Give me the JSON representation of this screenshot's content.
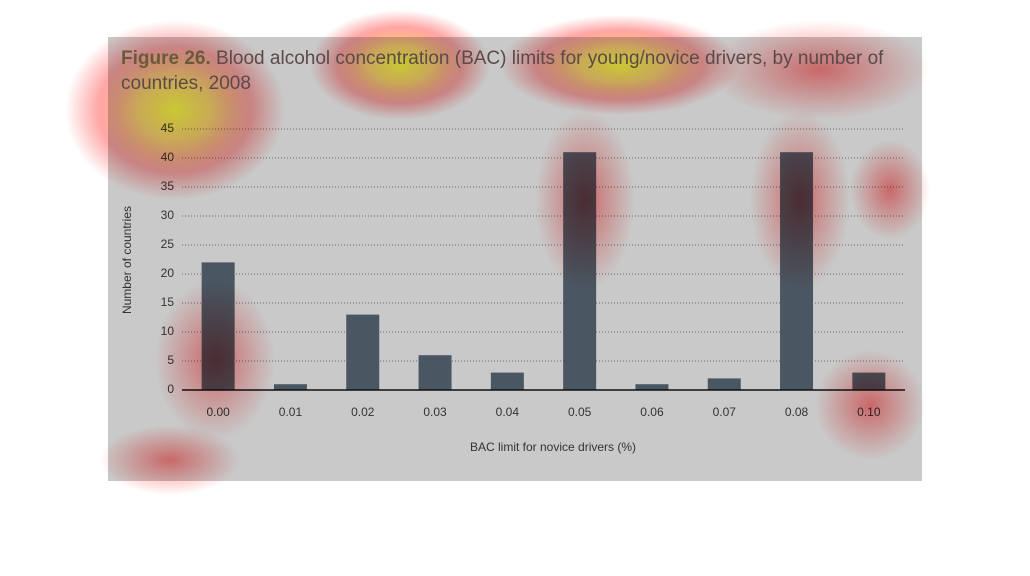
{
  "chart_data": {
    "type": "bar",
    "figure_label": "Figure 26.",
    "title": "Blood alcohol concentration (BAC) limits for young/novice drivers, by number of countries, 2008",
    "x_label": "BAC limit for novice drivers (%)",
    "y_label": "Number of countries",
    "categories": [
      "0.00",
      "0.01",
      "0.02",
      "0.03",
      "0.04",
      "0.05",
      "0.06",
      "0.07",
      "0.08",
      "0.10"
    ],
    "values": [
      22,
      1,
      13,
      6,
      3,
      41,
      1,
      2,
      41,
      3
    ],
    "color": "#4a5661",
    "ylim": [
      0,
      45
    ],
    "yticks": [
      0,
      5,
      10,
      15,
      20,
      25,
      30,
      35,
      40,
      45
    ],
    "grid": true
  }
}
